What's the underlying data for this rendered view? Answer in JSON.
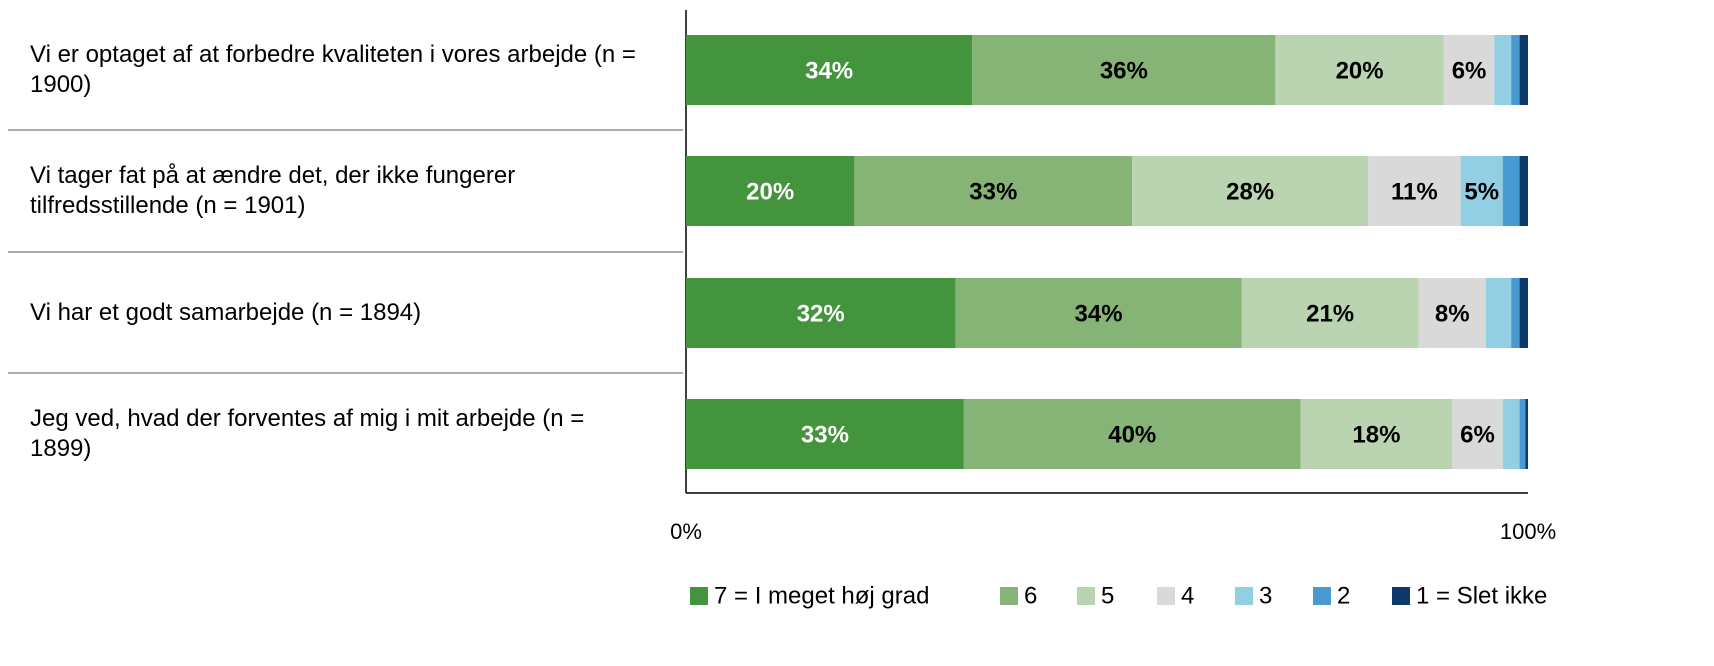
{
  "chart_data": {
    "type": "stacked_bar_horizontal",
    "categories": [
      "Vi er optaget af at forbedre kvaliteten i vores arbejde (n = 1900)",
      "Vi tager fat på at ændre det, der ikke fungerer tilfredsstillende (n = 1901)",
      "Vi har et godt samarbejde (n = 1894)",
      "Jeg ved, hvad der forventes af mig i mit arbejde (n = 1899)"
    ],
    "series": [
      {
        "name": "7 = I meget høj grad",
        "color": "#43943c",
        "label_color": "#ffffff",
        "values": [
          34,
          20,
          32,
          33
        ],
        "value_labels": [
          "34%",
          "20%",
          "32%",
          "33%"
        ]
      },
      {
        "name": "6",
        "color": "#86b376",
        "label_color": "#000000",
        "values": [
          36,
          33,
          34,
          40
        ],
        "value_labels": [
          "36%",
          "33%",
          "34%",
          "40%"
        ]
      },
      {
        "name": "5",
        "color": "#bad3b0",
        "label_color": "#000000",
        "values": [
          20,
          28,
          21,
          18
        ],
        "value_labels": [
          "20%",
          "28%",
          "21%",
          "18%"
        ]
      },
      {
        "name": "4",
        "color": "#d9d9d9",
        "label_color": "#000000",
        "values": [
          6,
          11,
          8,
          6
        ],
        "value_labels": [
          "6%",
          "11%",
          "8%",
          "6%"
        ]
      },
      {
        "name": "3",
        "color": "#92cfe3",
        "label_color": "#000000",
        "values": [
          2,
          5,
          3,
          2
        ],
        "value_labels": [
          null,
          "5%",
          null,
          null
        ]
      },
      {
        "name": "2",
        "color": "#4a9ad2",
        "label_color": "#000000",
        "values": [
          1,
          2,
          1,
          0.7
        ],
        "value_labels": [
          null,
          null,
          null,
          null
        ]
      },
      {
        "name": "1 = Slet ikke",
        "color": "#0d3a6b",
        "label_color": "#ffffff",
        "values": [
          1,
          1,
          1,
          0.3
        ],
        "value_labels": [
          null,
          null,
          null,
          null
        ]
      }
    ],
    "xlim": [
      0,
      100
    ],
    "xticks": [
      {
        "value": 0,
        "label": "0%"
      },
      {
        "value": 100,
        "label": "100%"
      }
    ],
    "legend": "bottom"
  }
}
